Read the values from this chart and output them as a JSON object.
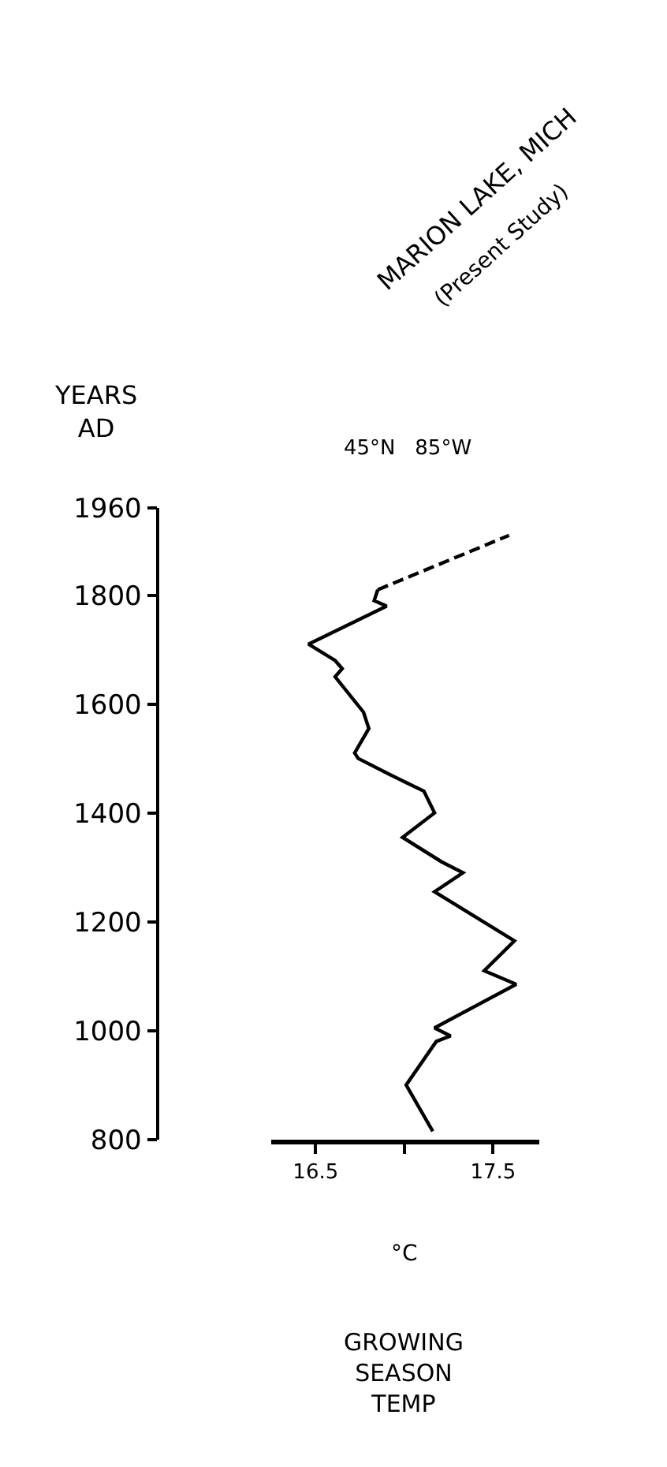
{
  "chart_data": {
    "type": "line",
    "title": "MARION LAKE, MICH",
    "subtitle": "(Present Study)",
    "ylabel": "YEARS\nAD",
    "xlabel": "°C",
    "annotations": [
      "45°N   85°W",
      "GROWING\nSEASON\nTEMP"
    ],
    "series": [
      {
        "color": "#000000",
        "line_style": "solid",
        "x": [
          17.16,
          17.01,
          17.18,
          17.26,
          17.17,
          17.63,
          17.45,
          17.62,
          17.17,
          17.33,
          17.21,
          16.99,
          17.17,
          17.11,
          16.92,
          16.74,
          16.72,
          16.8,
          16.77,
          16.61,
          16.65,
          16.61,
          16.46,
          16.9,
          16.83,
          16.85
        ],
        "values": [
          815,
          900,
          980,
          990,
          1005,
          1085,
          1110,
          1165,
          1255,
          1290,
          1310,
          1355,
          1400,
          1440,
          1470,
          1500,
          1510,
          1555,
          1585,
          1650,
          1665,
          1680,
          1710,
          1780,
          1790,
          1810
        ]
      },
      {
        "color": "#000000",
        "line_style": "dashed",
        "x": [
          16.85,
          17.59
        ],
        "values": [
          1810,
          1910
        ]
      }
    ],
    "xlim": [
      16.25,
      17.76
    ],
    "xticks": [
      16.5,
      {
        "value": 17.0,
        "label": null
      },
      17.5
    ],
    "ylim": [
      800,
      1960
    ],
    "yticks": [
      800,
      1000,
      1200,
      1400,
      1600,
      1800,
      1960
    ],
    "marker": "none"
  }
}
